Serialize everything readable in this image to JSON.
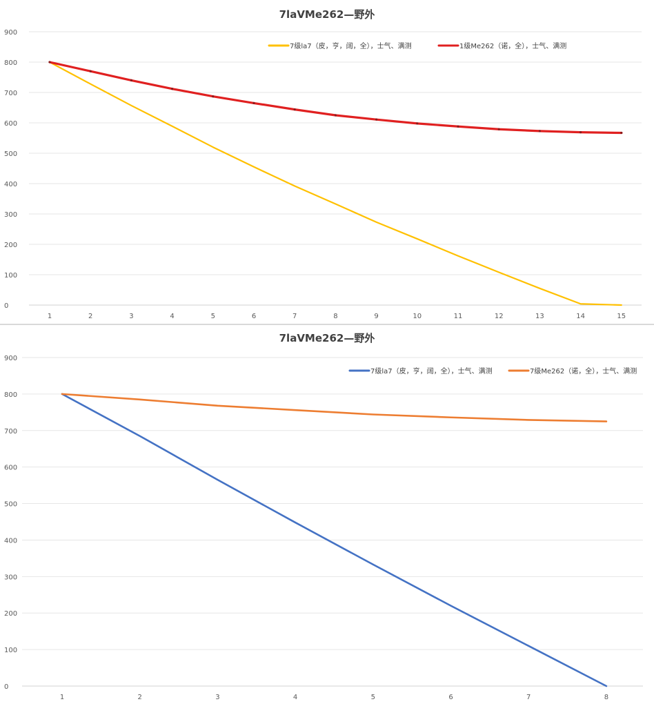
{
  "chart_data": [
    {
      "type": "line",
      "title": "7laVMe262—野外",
      "xlabel": "",
      "ylabel": "",
      "categories": [
        "1",
        "2",
        "3",
        "4",
        "5",
        "6",
        "7",
        "8",
        "9",
        "10",
        "11",
        "12",
        "13",
        "14",
        "15"
      ],
      "ylim": [
        0,
        900
      ],
      "yticks": [
        "0",
        "100",
        "200",
        "300",
        "400",
        "500",
        "600",
        "700",
        "800",
        "900"
      ],
      "grid": true,
      "legend_position": "top-right",
      "series": [
        {
          "name": "7级la7（皮，亨，阔，全），士气、满测",
          "color": "#ffc000",
          "values": [
            800,
            728,
            657,
            589,
            520,
            455,
            392,
            333,
            273,
            218,
            162,
            108,
            55,
            4,
            0
          ]
        },
        {
          "name": "1级Me262（诺，全），士气、满测",
          "color": "#e02020",
          "values": [
            800,
            770,
            740,
            712,
            687,
            665,
            644,
            625,
            611,
            598,
            588,
            579,
            573,
            569,
            567
          ]
        }
      ]
    },
    {
      "type": "line",
      "title": "7laVMe262—野外",
      "xlabel": "",
      "ylabel": "",
      "categories": [
        "1",
        "2",
        "3",
        "4",
        "5",
        "6",
        "7",
        "8"
      ],
      "ylim": [
        0,
        900
      ],
      "yticks": [
        "0",
        "100",
        "200",
        "300",
        "400",
        "500",
        "600",
        "700",
        "800",
        "900"
      ],
      "grid": true,
      "legend_position": "top-right",
      "series": [
        {
          "name": "7级la7（皮，亨，阔，全），士气、满测",
          "color": "#4472c4",
          "values": [
            800,
            685,
            565,
            448,
            333,
            220,
            110,
            0
          ]
        },
        {
          "name": "7级Me262（诺，全），士气、满测",
          "color": "#ed7d31",
          "values": [
            800,
            785,
            768,
            756,
            744,
            736,
            729,
            725
          ]
        }
      ]
    }
  ]
}
